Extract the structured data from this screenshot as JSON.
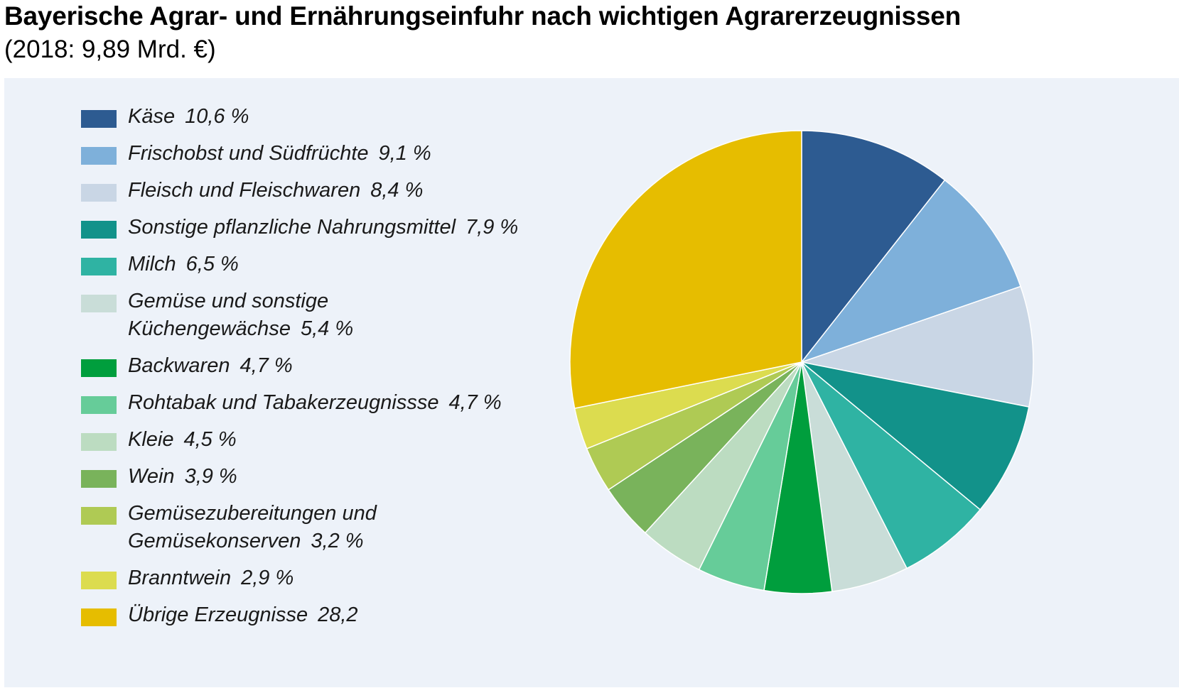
{
  "chart_data": {
    "type": "pie",
    "title": "Bayerische Agrar- und Ernährungseinfuhr nach wichtigen Agrarerzeugnissen",
    "subtitle": "(2018: 9,89 Mrd. €)",
    "legend_position": "left",
    "slices": [
      {
        "name": "Käse",
        "label_value": "10,6 %",
        "value": 10.6,
        "color": "#2d5b91"
      },
      {
        "name": "Frischobst und Südfrüchte",
        "label_value": "9,1 %",
        "value": 9.1,
        "color": "#7eb0da"
      },
      {
        "name": "Fleisch und Fleischwaren",
        "label_value": "8,4 %",
        "value": 8.4,
        "color": "#c9d6e5"
      },
      {
        "name": "Sonstige pflanzliche Nahrungsmittel",
        "label_value": "7,9 %",
        "value": 7.9,
        "color": "#12928a"
      },
      {
        "name": "Milch",
        "label_value": "6,5 %",
        "value": 6.5,
        "color": "#2fb3a3"
      },
      {
        "name": "Gemüse und sonstige\nKüchengewächse",
        "label_value": "5,4 %",
        "value": 5.4,
        "color": "#c9ddd8"
      },
      {
        "name": "Backwaren",
        "label_value": "4,7 %",
        "value": 4.7,
        "color": "#009e3d"
      },
      {
        "name": "Rohtabak und Tabakerzeugnissse",
        "label_value": "4,7 %",
        "value": 4.7,
        "color": "#66cc99"
      },
      {
        "name": "Kleie",
        "label_value": "4,5 %",
        "value": 4.5,
        "color": "#bcdcc1"
      },
      {
        "name": "Wein",
        "label_value": "3,9 %",
        "value": 3.9,
        "color": "#79b35b"
      },
      {
        "name": "Gemüsezubereitungen und\nGemüsekonserven",
        "label_value": "3,2 %",
        "value": 3.2,
        "color": "#afca54"
      },
      {
        "name": "Branntwein",
        "label_value": "2,9 %",
        "value": 2.9,
        "color": "#dcdc4f"
      },
      {
        "name": "Übrige Erzeugnisse",
        "label_value": "28,2",
        "value": 28.2,
        "color": "#e6bd00"
      }
    ]
  }
}
